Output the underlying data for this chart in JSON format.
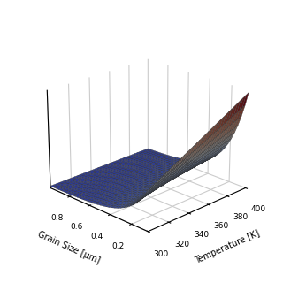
{
  "title": "",
  "xlabel": "Grain Size [μm]",
  "ylabel": "Temperature [K]",
  "zlabel": "",
  "grain_range": [
    0.05,
    1.0
  ],
  "temp_range": [
    300,
    400
  ],
  "grain_ticks": [
    0.2,
    0.4,
    0.6,
    0.8
  ],
  "temp_ticks": [
    300,
    320,
    340,
    360,
    380,
    400
  ],
  "colormap": "coolwarm",
  "elev": 22,
  "azim": -135,
  "figsize": [
    3.2,
    3.2
  ],
  "dpi": 100,
  "background_color": "#ffffff",
  "grain_exp_scale": 0.18,
  "n_grain": 35,
  "n_temp": 35
}
